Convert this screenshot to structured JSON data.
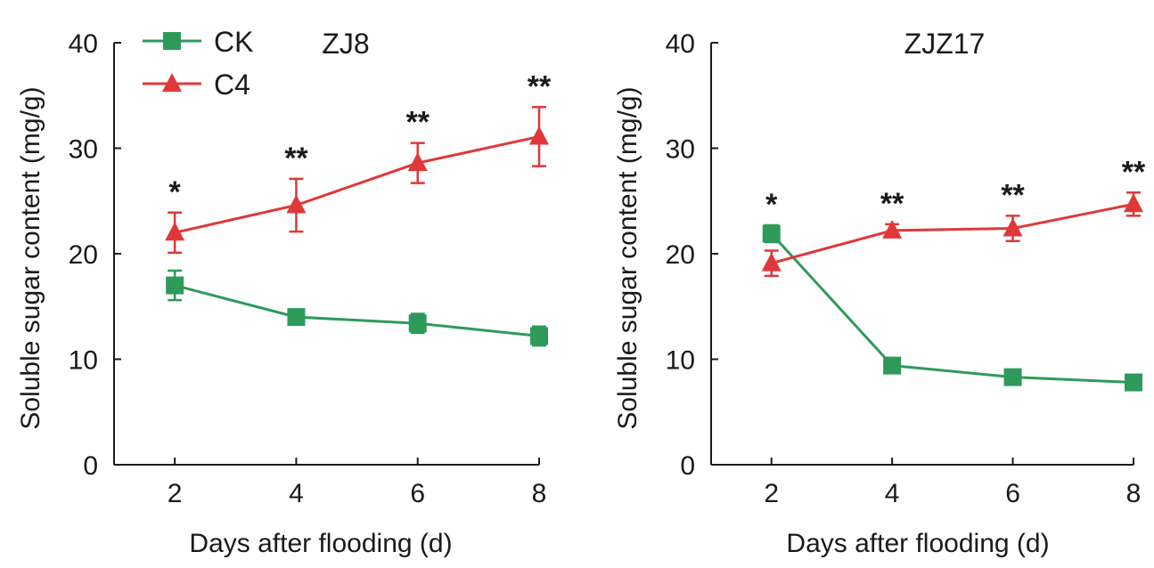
{
  "colors": {
    "ck": "#2e9a5a",
    "c4": "#e03838",
    "axis": "#1a1a1a"
  },
  "chart_data": [
    {
      "type": "line",
      "title": "ZJ8",
      "xlabel": "Days after flooding (d)",
      "ylabel": "Soluble sugar content (mg/g)",
      "x": [
        2,
        4,
        6,
        8
      ],
      "x_ticks": [
        "2",
        "4",
        "6",
        "8"
      ],
      "y_ticks": [
        "0",
        "10",
        "20",
        "30",
        "40"
      ],
      "ylim": [
        0,
        40
      ],
      "xlim": [
        1,
        8
      ],
      "legend": {
        "position": "top-left",
        "entries": [
          "CK",
          "C4"
        ]
      },
      "significance": [
        "*",
        "**",
        "**",
        "**"
      ],
      "series": [
        {
          "name": "CK",
          "marker": "square",
          "values": [
            17.0,
            14.0,
            13.4,
            12.2
          ],
          "errors": [
            1.4,
            0.6,
            0.9,
            0.9
          ]
        },
        {
          "name": "C4",
          "marker": "triangle",
          "values": [
            22.0,
            24.6,
            28.6,
            31.1
          ],
          "errors": [
            1.9,
            2.5,
            1.9,
            2.8
          ]
        }
      ]
    },
    {
      "type": "line",
      "title": "ZJZ17",
      "xlabel": "Days after flooding (d)",
      "ylabel": "Soluble sugar content (mg/g)",
      "x": [
        2,
        4,
        6,
        8
      ],
      "x_ticks": [
        "2",
        "4",
        "6",
        "8"
      ],
      "y_ticks": [
        "0",
        "10",
        "20",
        "30",
        "40"
      ],
      "ylim": [
        0,
        40
      ],
      "xlim": [
        1,
        8
      ],
      "significance": [
        "*",
        "**",
        "**",
        "**"
      ],
      "series": [
        {
          "name": "CK",
          "marker": "square",
          "values": [
            21.9,
            9.4,
            8.3,
            7.8
          ],
          "errors": [
            0.8,
            0.5,
            0.6,
            0.5
          ]
        },
        {
          "name": "C4",
          "marker": "triangle",
          "values": [
            19.1,
            22.2,
            22.4,
            24.7
          ],
          "errors": [
            1.2,
            0.6,
            1.2,
            1.1
          ]
        }
      ]
    }
  ]
}
